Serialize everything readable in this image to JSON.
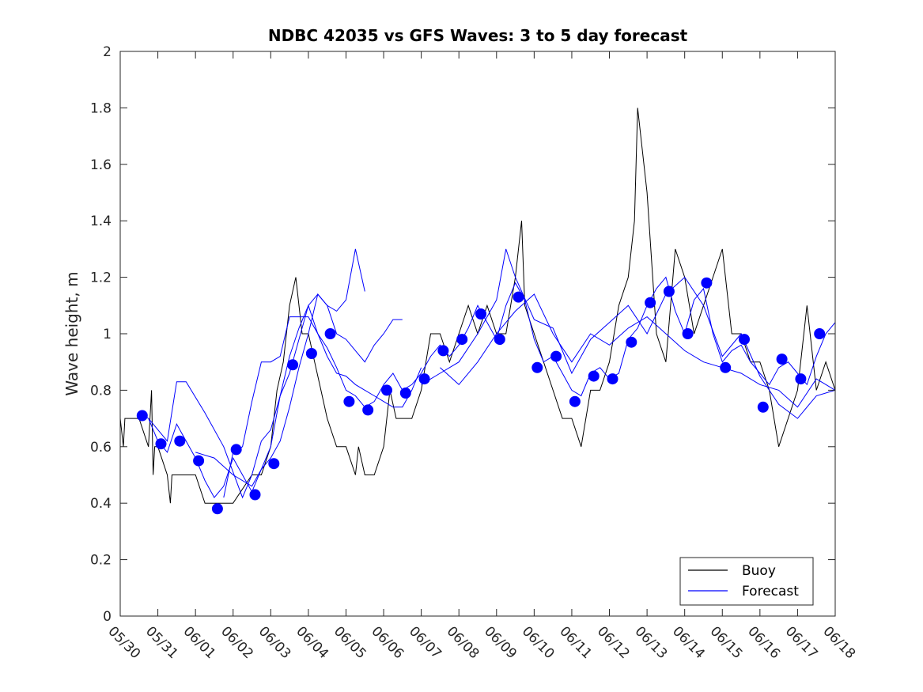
{
  "chart_data": {
    "type": "line",
    "title": "NDBC 42035 vs GFS Waves: 3 to 5 day forecast",
    "xlabel": "",
    "ylabel": "Wave height, m",
    "xlim": [
      "05/30",
      "06/18"
    ],
    "ylim": [
      0,
      2
    ],
    "grid": false,
    "legend_position": "bottom-right",
    "x_tick_labels": [
      "05/30",
      "05/31",
      "06/01",
      "06/02",
      "06/03",
      "06/04",
      "06/05",
      "06/06",
      "06/07",
      "06/08",
      "06/09",
      "06/10",
      "06/11",
      "06/12",
      "06/13",
      "06/14",
      "06/15",
      "06/16",
      "06/17",
      "06/18"
    ],
    "y_ticks": [
      0,
      0.2,
      0.4,
      0.6,
      0.8,
      1,
      1.2,
      1.4,
      1.6,
      1.8,
      2
    ],
    "colors": {
      "buoy": "#000000",
      "forecast": "#0000ff",
      "marker": "#0000ff"
    },
    "legend": {
      "buoy_label": "Buoy",
      "forecast_label": "Forecast"
    },
    "series": [
      {
        "name": "Buoy",
        "x": [
          "05/30 00:00",
          "05/30 02:00",
          "05/30 03:00",
          "05/30 06:00",
          "05/30 12:00",
          "05/30 18:00",
          "05/30 20:00",
          "05/30 21:00",
          "05/30 22:00",
          "05/31 00:00",
          "05/31 06:00",
          "05/31 08:00",
          "05/31 09:00",
          "05/31 12:00",
          "05/31 18:00",
          "06/01 00:00",
          "06/01 06:00",
          "06/01 12:00",
          "06/02 00:00",
          "06/02 12:00",
          "06/02 18:00",
          "06/03 00:00",
          "06/03 04:00",
          "06/03 08:00",
          "06/03 12:00",
          "06/03 16:00",
          "06/03 20:00",
          "06/04 00:00",
          "06/04 04:00",
          "06/04 08:00",
          "06/04 12:00",
          "06/04 18:00",
          "06/05 00:00",
          "06/05 06:00",
          "06/05 08:00",
          "06/05 12:00",
          "06/05 18:00",
          "06/06 00:00",
          "06/06 04:00",
          "06/06 08:00",
          "06/06 12:00",
          "06/06 18:00",
          "06/07 00:00",
          "06/07 06:00",
          "06/07 12:00",
          "06/07 18:00",
          "06/08 00:00",
          "06/08 06:00",
          "06/08 12:00",
          "06/08 18:00",
          "06/09 00:00",
          "06/09 06:00",
          "06/09 12:00",
          "06/09 16:00",
          "06/09 18:00",
          "06/10 00:00",
          "06/10 06:00",
          "06/10 12:00",
          "06/10 18:00",
          "06/11 00:00",
          "06/11 06:00",
          "06/11 12:00",
          "06/11 18:00",
          "06/12 00:00",
          "06/12 06:00",
          "06/12 12:00",
          "06/12 16:00",
          "06/12 18:00",
          "06/13 00:00",
          "06/13 06:00",
          "06/13 12:00",
          "06/13 18:00",
          "06/14 00:00",
          "06/14 06:00",
          "06/14 12:00",
          "06/14 18:00",
          "06/15 00:00",
          "06/15 06:00",
          "06/15 12:00",
          "06/15 18:00",
          "06/16 00:00",
          "06/16 06:00",
          "06/16 12:00",
          "06/16 18:00",
          "06/17 00:00",
          "06/17 06:00",
          "06/17 12:00",
          "06/17 18:00",
          "06/18 00:00"
        ],
        "y": [
          0.7,
          0.6,
          0.7,
          0.7,
          0.7,
          0.6,
          0.8,
          0.5,
          0.6,
          0.6,
          0.5,
          0.4,
          0.5,
          0.5,
          0.5,
          0.5,
          0.4,
          0.4,
          0.4,
          0.5,
          0.5,
          0.6,
          0.8,
          0.9,
          1.1,
          1.2,
          1.0,
          1.0,
          0.9,
          0.8,
          0.7,
          0.6,
          0.6,
          0.5,
          0.6,
          0.5,
          0.5,
          0.6,
          0.8,
          0.7,
          0.7,
          0.7,
          0.8,
          1.0,
          1.0,
          0.9,
          1.0,
          1.1,
          1.0,
          1.1,
          1.0,
          1.0,
          1.2,
          1.4,
          1.1,
          1.0,
          0.9,
          0.8,
          0.7,
          0.7,
          0.6,
          0.8,
          0.8,
          0.9,
          1.1,
          1.2,
          1.4,
          1.8,
          1.5,
          1.0,
          0.9,
          1.3,
          1.2,
          1.0,
          1.1,
          1.2,
          1.3,
          1.0,
          1.0,
          0.9,
          0.9,
          0.8,
          0.6,
          0.7,
          0.8,
          1.1,
          0.8,
          0.9,
          0.8
        ]
      },
      {
        "name": "Forecast",
        "x": [
          "05/30 12:00",
          "05/30 18:00",
          "05/31 00:00",
          "05/31 06:00",
          "05/31 12:00",
          "05/31 18:00",
          "06/01 00:00",
          "06/01 06:00",
          "06/01 12:00",
          "06/01 18:00",
          "06/02 00:00",
          "06/02 06:00",
          "06/02 12:00",
          "06/02 18:00",
          "06/03 00:00",
          "06/03 06:00",
          "06/03 12:00",
          "06/03 18:00",
          "06/04 00:00",
          "06/04 06:00",
          "06/04 12:00",
          "06/04 18:00",
          "06/05 00:00",
          "06/05 06:00",
          "06/05 12:00",
          "06/05 18:00",
          "06/06 00:00",
          "06/06 06:00",
          "06/06 12:00",
          "06/06 18:00",
          "06/07 00:00",
          "06/07 06:00",
          "06/07 12:00",
          "06/07 18:00",
          "06/08 00:00",
          "06/08 06:00",
          "06/08 12:00",
          "06/08 18:00",
          "06/09 00:00",
          "06/09 06:00",
          "06/09 12:00",
          "06/09 18:00",
          "06/10 00:00",
          "06/10 06:00",
          "06/10 12:00",
          "06/10 18:00",
          "06/11 00:00",
          "06/11 06:00",
          "06/11 12:00",
          "06/11 18:00",
          "06/12 00:00",
          "06/12 06:00",
          "06/12 12:00",
          "06/12 18:00",
          "06/13 00:00",
          "06/13 06:00",
          "06/13 12:00",
          "06/13 18:00",
          "06/14 00:00",
          "06/14 06:00",
          "06/14 12:00",
          "06/14 18:00",
          "06/15 00:00",
          "06/15 06:00",
          "06/15 12:00",
          "06/15 18:00",
          "06/16 00:00",
          "06/16 06:00",
          "06/16 12:00",
          "06/16 18:00",
          "06/17 00:00",
          "06/17 06:00",
          "06/17 12:00",
          "06/17 18:00",
          "06/18 00:00"
        ],
        "y": [
          0.72,
          0.7,
          0.62,
          0.58,
          0.68,
          0.62,
          0.56,
          0.48,
          0.42,
          0.46,
          0.56,
          0.5,
          0.44,
          0.52,
          0.6,
          0.78,
          0.92,
          1.02,
          1.1,
          1.0,
          0.95,
          0.88,
          0.8,
          0.78,
          0.74,
          0.76,
          0.82,
          0.86,
          0.8,
          0.82,
          0.86,
          0.92,
          0.96,
          0.92,
          0.96,
          1.02,
          1.1,
          1.04,
          0.98,
          1.1,
          1.18,
          1.12,
          0.98,
          0.9,
          0.92,
          0.86,
          0.8,
          0.78,
          0.86,
          0.88,
          0.84,
          0.86,
          0.98,
          1.02,
          1.1,
          1.16,
          1.2,
          1.08,
          1.0,
          1.12,
          1.16,
          1.0,
          0.9,
          0.94,
          0.96,
          0.9,
          0.86,
          0.82,
          0.88,
          0.9,
          0.86,
          0.82,
          0.92,
          1.0,
          1.04
        ]
      },
      {
        "name": "",
        "x": [
          "05/30 18:00",
          "05/31 06:00",
          "05/31 12:00",
          "05/31 18:00",
          "06/01 06:00",
          "06/01 18:00",
          "06/02 06:00",
          "06/02 12:00",
          "06/02 18:00",
          "06/03 00:00",
          "06/03 06:00",
          "06/03 12:00",
          "06/03 18:00",
          "06/04 00:00",
          "06/04 06:00",
          "06/04 12:00",
          "06/04 18:00",
          "06/05 00:00",
          "06/05 06:00",
          "06/05 12:00"
        ],
        "y": [
          0.7,
          0.62,
          0.83,
          0.83,
          0.72,
          0.6,
          0.42,
          0.5,
          0.62,
          0.66,
          0.78,
          0.86,
          0.98,
          1.1,
          1.14,
          1.1,
          1.08,
          1.12,
          1.3,
          1.15
        ]
      },
      {
        "name": "",
        "x": [
          "06/01 00:00",
          "06/01 12:00",
          "06/02 00:00",
          "06/02 12:00",
          "06/02 18:00",
          "06/03 00:00",
          "06/03 06:00",
          "06/03 12:00",
          "06/03 18:00",
          "06/04 00:00",
          "06/04 06:00",
          "06/04 12:00",
          "06/04 18:00",
          "06/05 00:00",
          "06/05 06:00",
          "06/05 12:00",
          "06/05 18:00",
          "06/06 00:00",
          "06/06 06:00",
          "06/06 12:00"
        ],
        "y": [
          0.58,
          0.56,
          0.5,
          0.46,
          0.52,
          0.56,
          0.62,
          0.74,
          0.88,
          1.0,
          1.14,
          1.1,
          1.0,
          0.98,
          0.94,
          0.9,
          0.96,
          1.0,
          1.05,
          1.05
        ]
      },
      {
        "name": "",
        "x": [
          "06/01 18:00",
          "06/02 00:00",
          "06/02 06:00",
          "06/02 12:00",
          "06/02 18:00",
          "06/03 00:00",
          "06/03 06:00",
          "06/03 12:00",
          "06/03 18:00",
          "06/04 00:00",
          "06/04 06:00",
          "06/04 12:00",
          "06/04 18:00",
          "06/05 00:00",
          "06/05 06:00",
          "06/05 12:00",
          "06/05 18:00",
          "06/06 00:00",
          "06/06 06:00",
          "06/06 12:00",
          "06/06 18:00",
          "06/07 00:00"
        ],
        "y": [
          0.42,
          0.58,
          0.6,
          0.76,
          0.9,
          0.9,
          0.92,
          1.06,
          1.06,
          1.06,
          1.0,
          0.92,
          0.86,
          0.85,
          0.82,
          0.8,
          0.78,
          0.76,
          0.74,
          0.74,
          0.8,
          0.88
        ]
      },
      {
        "name": "",
        "x": [
          "06/07 00:00",
          "06/07 12:00",
          "06/08 00:00",
          "06/08 12:00",
          "06/09 00:00",
          "06/09 06:00",
          "06/09 12:00",
          "06/10 00:00",
          "06/10 12:00",
          "06/11 00:00",
          "06/11 12:00",
          "06/12 00:00",
          "06/12 12:00",
          "06/13 00:00",
          "06/13 12:00",
          "06/14 00:00",
          "06/14 12:00",
          "06/15 00:00",
          "06/15 12:00",
          "06/16 00:00",
          "06/16 12:00",
          "06/17 00:00",
          "06/17 12:00",
          "06/18 00:00"
        ],
        "y": [
          0.82,
          0.86,
          0.9,
          1.0,
          1.12,
          1.3,
          1.2,
          1.05,
          1.02,
          0.86,
          0.98,
          1.04,
          1.1,
          1.0,
          1.14,
          1.2,
          1.1,
          0.92,
          1.0,
          0.85,
          0.75,
          0.7,
          0.78,
          0.8
        ]
      },
      {
        "name": "",
        "x": [
          "06/07 12:00",
          "06/08 00:00",
          "06/08 12:00",
          "06/09 00:00",
          "06/09 12:00",
          "06/10 00:00",
          "06/10 12:00",
          "06/11 00:00",
          "06/11 12:00",
          "06/12 00:00",
          "06/12 12:00",
          "06/13 00:00",
          "06/13 12:00",
          "06/14 00:00",
          "06/14 12:00",
          "06/15 00:00",
          "06/15 12:00",
          "06/16 00:00",
          "06/16 12:00",
          "06/17 00:00",
          "06/17 12:00",
          "06/18 00:00"
        ],
        "y": [
          0.88,
          0.82,
          0.9,
          1.0,
          1.08,
          1.14,
          1.0,
          0.9,
          1.0,
          0.96,
          1.02,
          1.06,
          1.0,
          0.94,
          0.9,
          0.88,
          0.86,
          0.82,
          0.8,
          0.74,
          0.84,
          0.8
        ]
      }
    ],
    "markers": {
      "x": [
        "05/30 14:00",
        "05/31 02:00",
        "05/31 14:00",
        "06/01 02:00",
        "06/01 14:00",
        "06/02 02:00",
        "06/02 14:00",
        "06/03 02:00",
        "06/03 14:00",
        "06/04 02:00",
        "06/04 14:00",
        "06/05 02:00",
        "06/05 14:00",
        "06/06 02:00",
        "06/06 14:00",
        "06/07 02:00",
        "06/07 14:00",
        "06/08 02:00",
        "06/08 14:00",
        "06/09 02:00",
        "06/09 14:00",
        "06/10 02:00",
        "06/10 14:00",
        "06/11 02:00",
        "06/11 14:00",
        "06/12 02:00",
        "06/12 14:00",
        "06/13 02:00",
        "06/13 14:00",
        "06/14 02:00",
        "06/14 14:00",
        "06/15 02:00",
        "06/15 14:00",
        "06/16 02:00",
        "06/16 14:00",
        "06/17 02:00",
        "06/17 14:00"
      ],
      "y": [
        0.71,
        0.61,
        0.62,
        0.55,
        0.38,
        0.59,
        0.43,
        0.54,
        0.89,
        0.93,
        1.0,
        0.76,
        0.73,
        0.8,
        0.79,
        0.84,
        0.94,
        0.98,
        1.07,
        0.98,
        1.13,
        0.88,
        0.92,
        0.76,
        0.85,
        0.84,
        0.97,
        1.11,
        1.15,
        1.0,
        1.18,
        0.88,
        0.98,
        0.74,
        0.91,
        0.84,
        1.0
      ]
    }
  }
}
